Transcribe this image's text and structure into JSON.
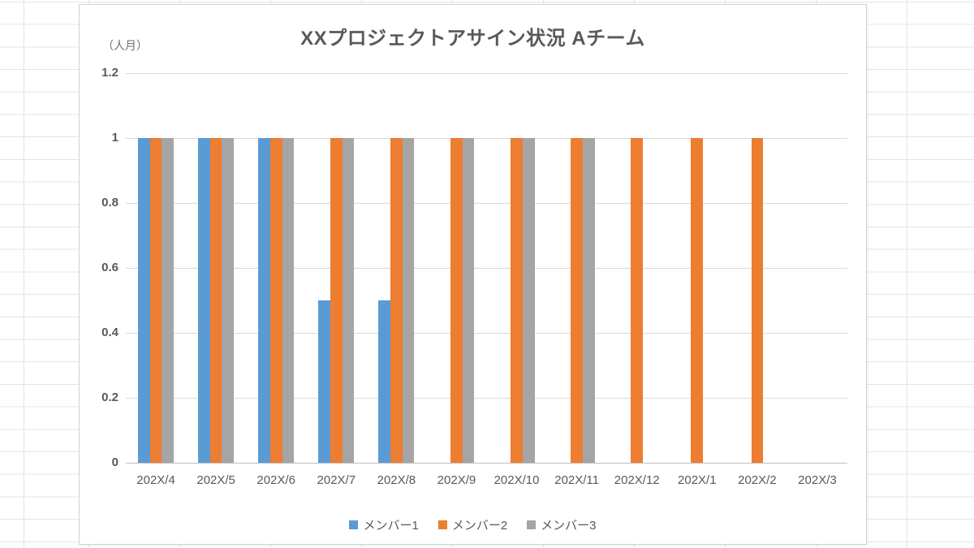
{
  "chart_data": {
    "type": "bar",
    "title": "XXプロジェクトアサイン状況 Aチーム",
    "unit_label": "（人月）",
    "categories": [
      "202X/4",
      "202X/5",
      "202X/6",
      "202X/7",
      "202X/8",
      "202X/9",
      "202X/10",
      "202X/11",
      "202X/12",
      "202X/1",
      "202X/2",
      "202X/3"
    ],
    "series": [
      {
        "name": "メンバー1",
        "color": "#5B9BD5",
        "values": [
          1,
          1,
          1,
          0.5,
          0.5,
          0,
          0,
          0,
          0,
          0,
          0,
          0
        ]
      },
      {
        "name": "メンバー2",
        "color": "#ED7D31",
        "values": [
          1,
          1,
          1,
          1,
          1,
          1,
          1,
          1,
          1,
          1,
          1,
          0
        ]
      },
      {
        "name": "メンバー3",
        "color": "#A5A5A5",
        "values": [
          1,
          1,
          1,
          1,
          1,
          1,
          1,
          1,
          0,
          0,
          0,
          0
        ]
      }
    ],
    "y_axis": {
      "min": 0,
      "max": 1.2,
      "tick_interval": 0.2,
      "tick_labels": [
        "0",
        "0.2",
        "0.4",
        "0.6",
        "0.8",
        "1",
        "1.2"
      ]
    },
    "legend": {
      "position": "bottom",
      "entries": [
        "メンバー1",
        "メンバー2",
        "メンバー3"
      ]
    },
    "grid": true
  },
  "styles": {
    "series_blue": "#5B9BD5",
    "series_orange": "#ED7D31",
    "series_gray": "#A5A5A5",
    "plot_gridline_color": "#d9d9d9",
    "axis_line_color": "#bfbfbf",
    "text_color": "#595959",
    "chart_border_color": "#d2d2d2",
    "sheet_gridline_color": "#e4e4e4"
  }
}
